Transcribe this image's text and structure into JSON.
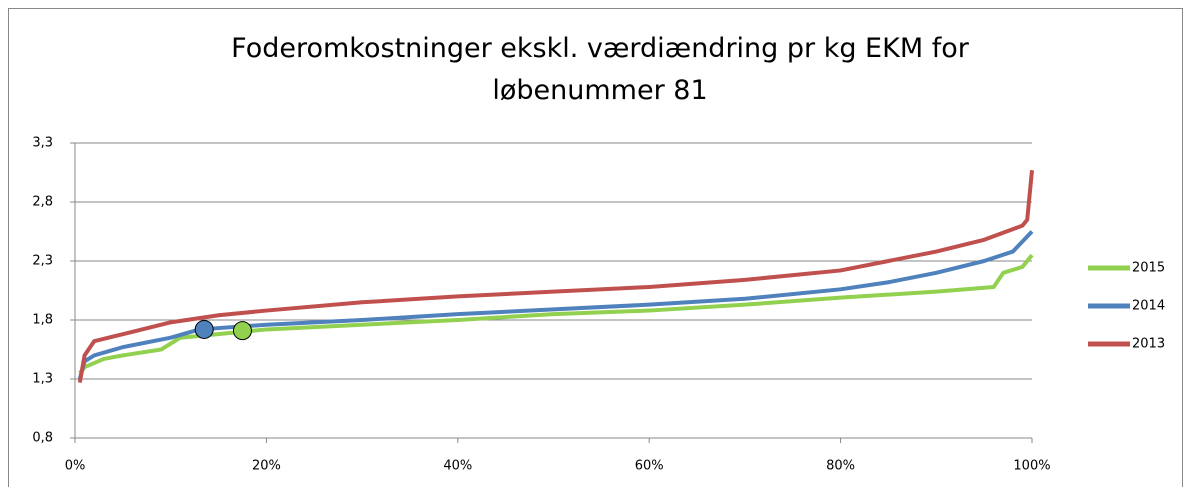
{
  "chart_data": {
    "type": "line",
    "title": "Foderomkostninger ekskl. værdiændring pr kg EKM for løbenummer 81",
    "xlim": [
      0,
      100
    ],
    "xticks": [
      {
        "value": 0,
        "label": "0%"
      },
      {
        "value": 20,
        "label": "20%"
      },
      {
        "value": 40,
        "label": "40%"
      },
      {
        "value": 60,
        "label": "60%"
      },
      {
        "value": 80,
        "label": "80%"
      },
      {
        "value": 100,
        "label": "100%"
      }
    ],
    "ylim": [
      0.8,
      3.3
    ],
    "yticks": [
      {
        "value": 0.8,
        "label": "0,8"
      },
      {
        "value": 1.3,
        "label": "1,3"
      },
      {
        "value": 1.8,
        "label": "1,8"
      },
      {
        "value": 2.3,
        "label": "2,3"
      },
      {
        "value": 2.8,
        "label": "2,8"
      },
      {
        "value": 3.3,
        "label": "3,3"
      }
    ],
    "grid": true,
    "legend": "right",
    "series": [
      {
        "name": "2015",
        "color": "#92d050",
        "x": [
          0.5,
          1,
          3,
          5,
          9,
          11,
          17.5,
          20,
          30,
          40,
          50,
          60,
          70,
          80,
          90,
          96,
          97,
          99,
          100
        ],
        "values": [
          1.35,
          1.4,
          1.47,
          1.5,
          1.55,
          1.65,
          1.7,
          1.72,
          1.76,
          1.8,
          1.85,
          1.88,
          1.93,
          1.99,
          2.04,
          2.08,
          2.2,
          2.25,
          2.35
        ],
        "highlight": {
          "x": 17.5,
          "y": 1.71
        }
      },
      {
        "name": "2014",
        "color": "#4f81bd",
        "x": [
          0.5,
          1,
          2,
          5,
          10,
          13,
          20,
          30,
          40,
          50,
          60,
          70,
          80,
          85,
          90,
          95,
          98,
          100
        ],
        "values": [
          1.3,
          1.45,
          1.5,
          1.57,
          1.65,
          1.72,
          1.76,
          1.8,
          1.85,
          1.89,
          1.93,
          1.98,
          2.06,
          2.12,
          2.2,
          2.3,
          2.38,
          2.55
        ],
        "highlight": {
          "x": 13.5,
          "y": 1.72
        }
      },
      {
        "name": "2013",
        "color": "#c0504d",
        "x": [
          0.5,
          1,
          2,
          5,
          10,
          15,
          20,
          30,
          40,
          50,
          60,
          70,
          80,
          85,
          90,
          95,
          99,
          99.5,
          100
        ],
        "values": [
          1.27,
          1.5,
          1.62,
          1.68,
          1.78,
          1.84,
          1.88,
          1.95,
          2.0,
          2.04,
          2.08,
          2.14,
          2.22,
          2.3,
          2.38,
          2.48,
          2.6,
          2.65,
          3.07
        ]
      }
    ]
  }
}
